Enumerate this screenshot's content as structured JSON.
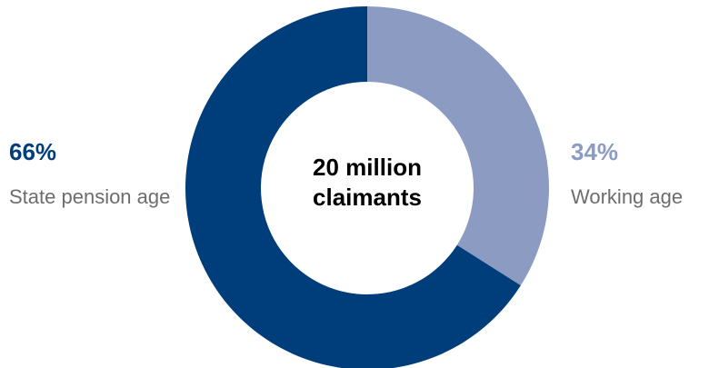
{
  "chart_data": {
    "type": "pie",
    "donut": true,
    "center_label": [
      "20 million",
      "claimants"
    ],
    "slices": [
      {
        "label": "Working age",
        "value": 34,
        "display": "34%",
        "color": "#8b9bc2"
      },
      {
        "label": "State pension age",
        "value": 66,
        "display": "66%",
        "color": "#003e7b"
      }
    ]
  }
}
